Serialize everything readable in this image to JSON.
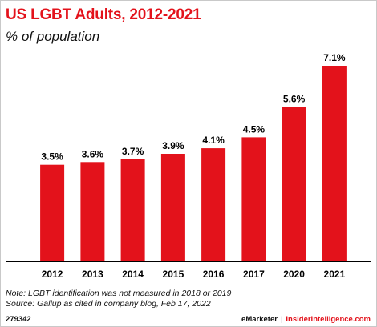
{
  "header": {
    "title": "US LGBT Adults, 2012-2021",
    "subtitle": "% of population"
  },
  "chart_data": {
    "type": "bar",
    "title": "US LGBT Adults, 2012-2021",
    "subtitle": "% of population",
    "categories": [
      "2012",
      "2013",
      "2014",
      "2015",
      "2016",
      "2017",
      "2020",
      "2021"
    ],
    "values": [
      3.5,
      3.6,
      3.7,
      3.9,
      4.1,
      4.5,
      5.6,
      7.1
    ],
    "value_labels": [
      "3.5%",
      "3.6%",
      "3.7%",
      "3.9%",
      "4.1%",
      "4.5%",
      "5.6%",
      "7.1%"
    ],
    "ylim": [
      0,
      7.1
    ],
    "grid": false,
    "bar_color": "#e3121b"
  },
  "notes": {
    "line1": "Note: LGBT identification was not measured in 2018 or 2019",
    "line2": "Source: Gallup as cited in company blog, Feb 17, 2022"
  },
  "footer": {
    "chart_id": "279342",
    "brand_emarketer": "eMarketer",
    "separator": "|",
    "brand_insider": "InsiderIntelligence.com"
  },
  "colors": {
    "accent": "#e3121b",
    "text": "#000000"
  }
}
